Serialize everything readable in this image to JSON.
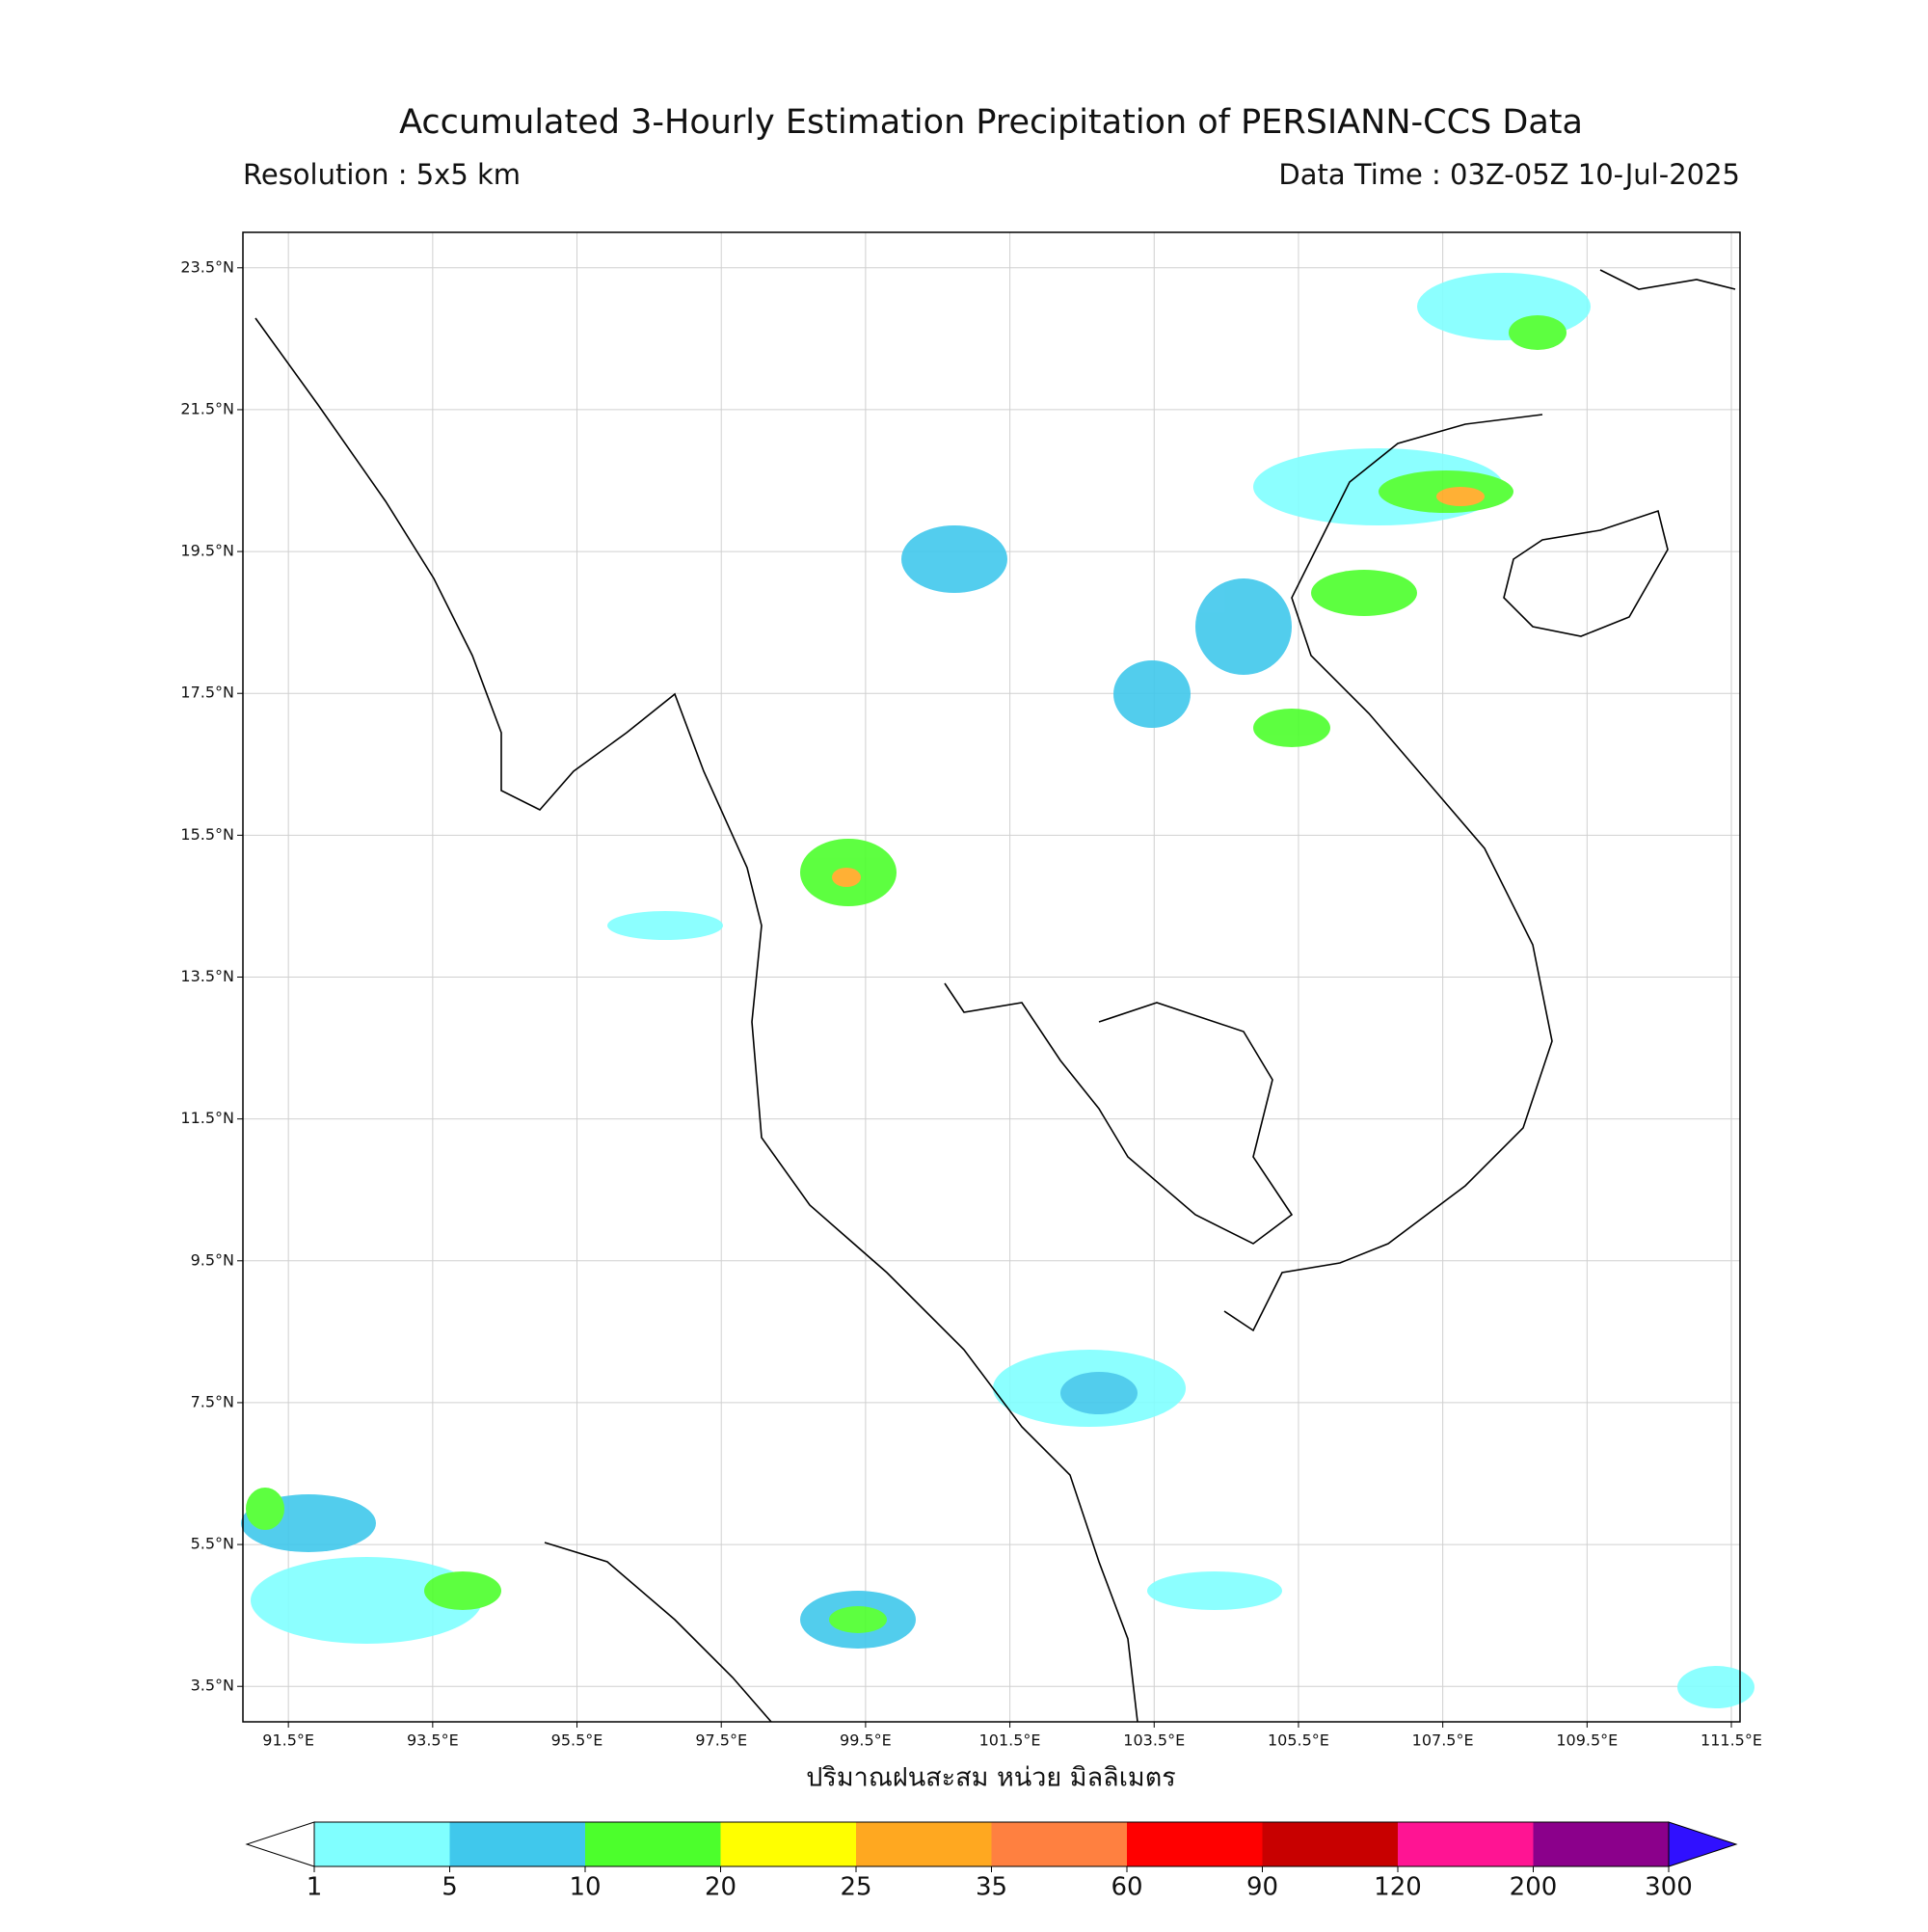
{
  "header": {
    "title": "Accumulated 3-Hourly Estimation Precipitation of PERSIANN-CCS Data",
    "resolution": "Resolution : 5x5 km",
    "data_time": "Data Time : 03Z-05Z 10-Jul-2025"
  },
  "map": {
    "lon_range": [
      90.87,
      111.62
    ],
    "lat_range": [
      3.0,
      24.0
    ],
    "lon_ticks": [
      {
        "value": 91.5,
        "label": "91.5°E"
      },
      {
        "value": 93.5,
        "label": "93.5°E"
      },
      {
        "value": 95.5,
        "label": "95.5°E"
      },
      {
        "value": 97.5,
        "label": "97.5°E"
      },
      {
        "value": 99.5,
        "label": "99.5°E"
      },
      {
        "value": 101.5,
        "label": "101.5°E"
      },
      {
        "value": 103.5,
        "label": "103.5°E"
      },
      {
        "value": 105.5,
        "label": "105.5°E"
      },
      {
        "value": 107.5,
        "label": "107.5°E"
      },
      {
        "value": 109.5,
        "label": "109.5°E"
      },
      {
        "value": 111.5,
        "label": "111.5°E"
      }
    ],
    "lat_ticks": [
      {
        "value": 23.5,
        "label": "23.5°N"
      },
      {
        "value": 21.5,
        "label": "21.5°N"
      },
      {
        "value": 19.5,
        "label": "19.5°N"
      },
      {
        "value": 17.5,
        "label": "17.5°N"
      },
      {
        "value": 15.5,
        "label": "15.5°N"
      },
      {
        "value": 13.5,
        "label": "13.5°N"
      },
      {
        "value": 11.5,
        "label": "11.5°N"
      },
      {
        "value": 9.5,
        "label": "9.5°N"
      },
      {
        "value": 7.5,
        "label": "7.5°N"
      },
      {
        "value": 5.5,
        "label": "5.5°N"
      },
      {
        "value": 3.5,
        "label": "3.5°N"
      }
    ],
    "xlabel": "ปริมาณฝนสะสม หน่วย มิลลิเมตร"
  },
  "colorbar": {
    "levels": [
      1,
      5,
      10,
      20,
      25,
      35,
      60,
      90,
      120,
      200,
      300
    ],
    "colors": [
      "#80ffff",
      "#40c8ec",
      "#4cff2c",
      "#ffff00",
      "#ffa820",
      "#ff8040",
      "#ff0000",
      "#c80000",
      "#ff1493",
      "#8b008b"
    ],
    "under_color": "#ffffff",
    "over_color": "#3010ff"
  }
}
